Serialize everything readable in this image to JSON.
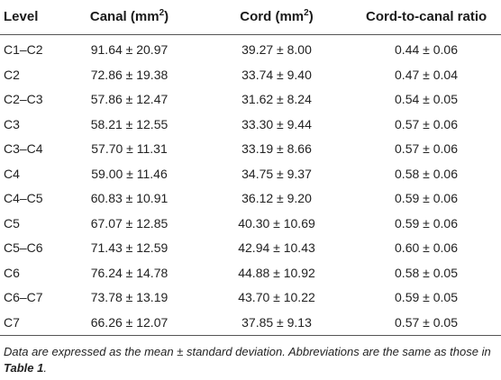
{
  "table": {
    "headers": {
      "level": "Level",
      "canal": "Canal (mm",
      "canal_sup": "2",
      "canal_close": ")",
      "cord": "Cord (mm",
      "cord_sup": "2",
      "cord_close": ")",
      "ratio": "Cord-to-canal ratio"
    },
    "rows": [
      {
        "level": "C1–C2",
        "canal": "91.64 ± 20.97",
        "cord": "39.27 ± 8.00",
        "ratio": "0.44 ± 0.06"
      },
      {
        "level": "C2",
        "canal": "72.86 ± 19.38",
        "cord": "33.74 ± 9.40",
        "ratio": "0.47 ± 0.04"
      },
      {
        "level": "C2–C3",
        "canal": "57.86 ± 12.47",
        "cord": "31.62 ± 8.24",
        "ratio": "0.54 ± 0.05"
      },
      {
        "level": "C3",
        "canal": "58.21 ± 12.55",
        "cord": "33.30 ± 9.44",
        "ratio": "0.57 ± 0.06"
      },
      {
        "level": "C3–C4",
        "canal": "57.70 ± 11.31",
        "cord": "33.19 ± 8.66",
        "ratio": "0.57 ± 0.06"
      },
      {
        "level": "C4",
        "canal": "59.00 ± 11.46",
        "cord": "34.75 ± 9.37",
        "ratio": "0.58 ± 0.06"
      },
      {
        "level": "C4–C5",
        "canal": "60.83 ± 10.91",
        "cord": "36.12 ± 9.20",
        "ratio": "0.59 ± 0.06"
      },
      {
        "level": "C5",
        "canal": "67.07 ± 12.85",
        "cord": "40.30 ± 10.69",
        "ratio": "0.59 ± 0.06"
      },
      {
        "level": "C5–C6",
        "canal": "71.43 ± 12.59",
        "cord": "42.94 ± 10.43",
        "ratio": "0.60 ± 0.06"
      },
      {
        "level": "C6",
        "canal": "76.24 ± 14.78",
        "cord": "44.88 ± 10.92",
        "ratio": "0.58 ± 0.05"
      },
      {
        "level": "C6–C7",
        "canal": "73.78 ± 13.19",
        "cord": "43.70 ± 10.22",
        "ratio": "0.59 ± 0.05"
      },
      {
        "level": "C7",
        "canal": "66.26 ± 12.07",
        "cord": "37.85 ± 9.13",
        "ratio": "0.57 ± 0.05"
      }
    ]
  },
  "footnote": {
    "text_before": "Data are expressed as the mean ± standard deviation. Abbreviations are the same as those in ",
    "ref": "Table 1",
    "text_after": "."
  }
}
